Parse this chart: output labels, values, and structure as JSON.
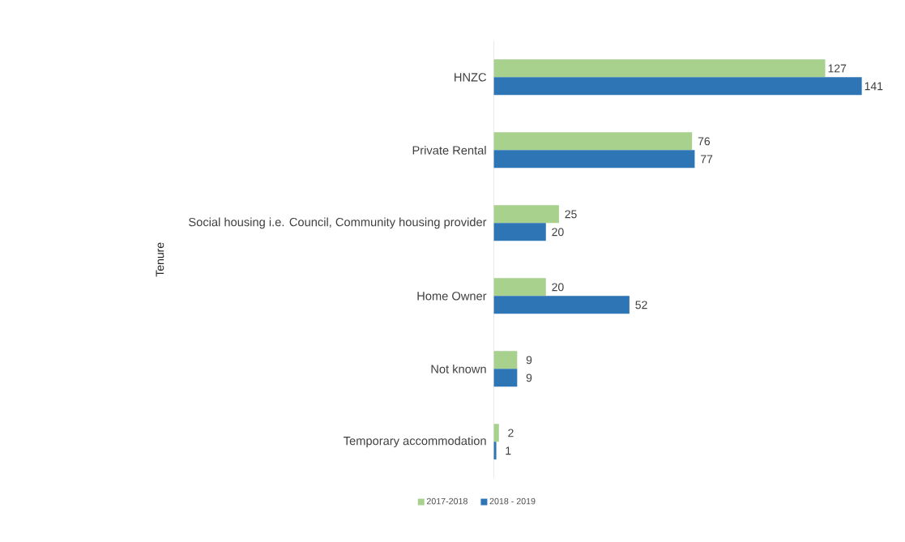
{
  "chart_data": {
    "type": "bar",
    "orientation": "horizontal",
    "ylabel": "Tenure",
    "categories": [
      "HNZC",
      "Private Rental",
      "Social housing i.e. Council, Community housing provider",
      "Home Owner",
      "Not known",
      "Temporary accommodation"
    ],
    "series": [
      {
        "name": "2017-2018",
        "color": "#a9d18e",
        "values": [
          127,
          76,
          25,
          20,
          9,
          2
        ]
      },
      {
        "name": "2018 - 2019",
        "color": "#2e75b6",
        "values": [
          141,
          77,
          20,
          52,
          9,
          1
        ]
      }
    ],
    "data_labels": true,
    "legend": "bottom"
  }
}
